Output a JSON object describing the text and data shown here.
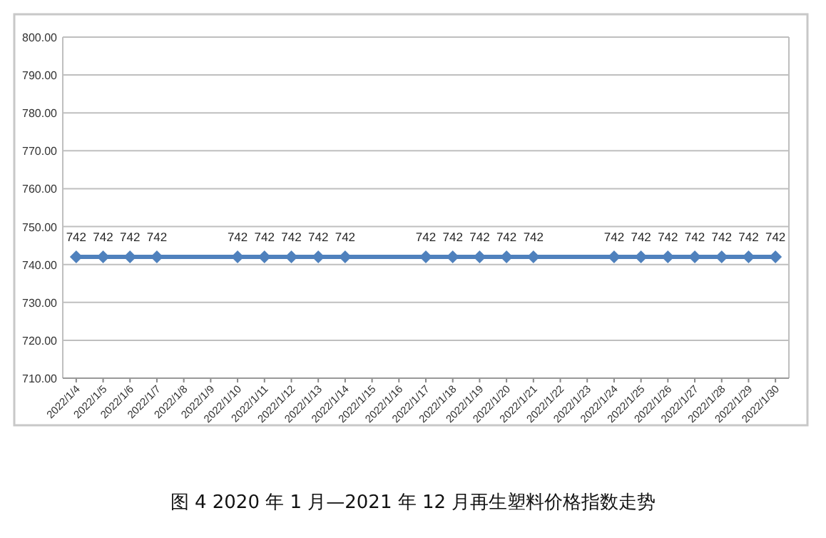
{
  "chart_data": {
    "type": "line",
    "title": "图 4 2020 年 1 月—2021 年 12 月再生塑料价格指数走势",
    "x": [
      "2022-01-04",
      "2022-01-05",
      "2022-01-06",
      "2022-01-07",
      "2022-01-10",
      "2022-01-11",
      "2022-01-12",
      "2022-01-13",
      "2022-01-14",
      "2022-01-17",
      "2022-01-18",
      "2022-01-19",
      "2022-01-20",
      "2022-01-21",
      "2022-01-24",
      "2022-01-25",
      "2022-01-26",
      "2022-01-27",
      "2022-01-28",
      "2022-01-29",
      "2022-01-30"
    ],
    "series": [
      {
        "color": "#4f81bd",
        "values": [
          742,
          742,
          742,
          742,
          742,
          742,
          742,
          742,
          742,
          742,
          742,
          742,
          742,
          742,
          742,
          742,
          742,
          742,
          742,
          742,
          742
        ]
      }
    ],
    "xlim": [
      "2022-01-03T12:00",
      "2022-01-30T12:00"
    ],
    "xticks": [
      {
        "value": "2022-01-04",
        "label": "2022/1/4"
      },
      {
        "value": "2022-01-05",
        "label": "2022/1/5"
      },
      {
        "value": "2022-01-06",
        "label": "2022/1/6"
      },
      {
        "value": "2022-01-07",
        "label": "2022/1/7"
      },
      {
        "value": "2022-01-08",
        "label": "2022/1/8"
      },
      {
        "value": "2022-01-09",
        "label": "2022/1/9"
      },
      {
        "value": "2022-01-10",
        "label": "2022/1/10"
      },
      {
        "value": "2022-01-11",
        "label": "2022/1/11"
      },
      {
        "value": "2022-01-12",
        "label": "2022/1/12"
      },
      {
        "value": "2022-01-13",
        "label": "2022/1/13"
      },
      {
        "value": "2022-01-14",
        "label": "2022/1/14"
      },
      {
        "value": "2022-01-15",
        "label": "2022/1/15"
      },
      {
        "value": "2022-01-16",
        "label": "2022/1/16"
      },
      {
        "value": "2022-01-17",
        "label": "2022/1/17"
      },
      {
        "value": "2022-01-18",
        "label": "2022/1/18"
      },
      {
        "value": "2022-01-19",
        "label": "2022/1/19"
      },
      {
        "value": "2022-01-20",
        "label": "2022/1/20"
      },
      {
        "value": "2022-01-21",
        "label": "2022/1/21"
      },
      {
        "value": "2022-01-22",
        "label": "2022/1/22"
      },
      {
        "value": "2022-01-23",
        "label": "2022/1/23"
      },
      {
        "value": "2022-01-24",
        "label": "2022/1/24"
      },
      {
        "value": "2022-01-25",
        "label": "2022/1/25"
      },
      {
        "value": "2022-01-26",
        "label": "2022/1/26"
      },
      {
        "value": "2022-01-27",
        "label": "2022/1/27"
      },
      {
        "value": "2022-01-28",
        "label": "2022/1/28"
      },
      {
        "value": "2022-01-29",
        "label": "2022/1/29"
      },
      {
        "value": "2022-01-30",
        "label": "2022/1/30"
      }
    ],
    "ylim": [
      710,
      800
    ],
    "yticks": [
      {
        "value": 710,
        "label": "710.00"
      },
      {
        "value": 720,
        "label": "720.00"
      },
      {
        "value": 730,
        "label": "730.00"
      },
      {
        "value": 740,
        "label": "740.00"
      },
      {
        "value": 750,
        "label": "750.00"
      },
      {
        "value": 760,
        "label": "760.00"
      },
      {
        "value": 770,
        "label": "770.00"
      },
      {
        "value": 780,
        "label": "780.00"
      },
      {
        "value": 790,
        "label": "790.00"
      },
      {
        "value": 800,
        "label": "800.00"
      }
    ],
    "grid": "y",
    "marker": "diamond",
    "data_labels": true
  }
}
